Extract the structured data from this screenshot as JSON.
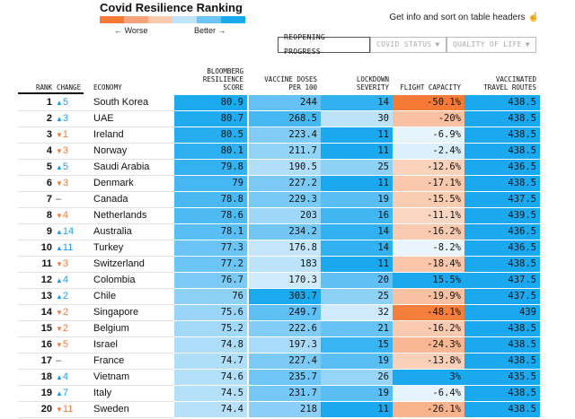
{
  "title": "Covid Resilience Ranking",
  "legend": {
    "worse_label": "← Worse",
    "better_label": "Better →",
    "colors": [
      "#f47a35",
      "#f6a27a",
      "#f9cbb1",
      "#bfe3fa",
      "#6cc4f5",
      "#1aa9ee"
    ]
  },
  "info_text": "Get info and sort on table headers",
  "tabs": [
    {
      "label": "REOPENING PROGRESS",
      "active": true
    },
    {
      "label": "COVID STATUS",
      "active": false
    },
    {
      "label": "QUALITY OF LIFE",
      "active": false
    }
  ],
  "headers": {
    "rank": "RANK",
    "change": "CHANGE",
    "economy": "ECONOMY",
    "score": [
      "BLOOMBERG",
      "RESILIENCE",
      "SCORE"
    ],
    "vaccine": [
      "VACCINE DOSES",
      "PER 100"
    ],
    "lockdown": [
      "LOCKDOWN",
      "SEVERITY"
    ],
    "flight": [
      "FLIGHT CAPACITY"
    ],
    "routes": [
      "VACCINATED",
      "TRAVEL ROUTES"
    ]
  },
  "rows": [
    {
      "rank": "1",
      "dir": "up",
      "change": "5",
      "economy": "South Korea",
      "score": "80.9",
      "vaccine": "244",
      "lockdown": "14",
      "flight": "-50.1%",
      "routes": "438.5"
    },
    {
      "rank": "2",
      "dir": "up",
      "change": "3",
      "economy": "UAE",
      "score": "80.7",
      "vaccine": "268.5",
      "lockdown": "30",
      "flight": "-20%",
      "routes": "438.5"
    },
    {
      "rank": "3",
      "dir": "down",
      "change": "1",
      "economy": "Ireland",
      "score": "80.5",
      "vaccine": "223.4",
      "lockdown": "11",
      "flight": "-6.9%",
      "routes": "438.5"
    },
    {
      "rank": "4",
      "dir": "down",
      "change": "3",
      "economy": "Norway",
      "score": "80.1",
      "vaccine": "211.7",
      "lockdown": "11",
      "flight": "-2.4%",
      "routes": "438.5"
    },
    {
      "rank": "5",
      "dir": "up",
      "change": "5",
      "economy": "Saudi Arabia",
      "score": "79.8",
      "vaccine": "190.5",
      "lockdown": "25",
      "flight": "-12.6%",
      "routes": "436.5"
    },
    {
      "rank": "6",
      "dir": "down",
      "change": "3",
      "economy": "Denmark",
      "score": "79",
      "vaccine": "227.2",
      "lockdown": "11",
      "flight": "-17.1%",
      "routes": "438.5"
    },
    {
      "rank": "7",
      "dir": "flat",
      "change": "–",
      "economy": "Canada",
      "score": "78.8",
      "vaccine": "229.3",
      "lockdown": "19",
      "flight": "-15.5%",
      "routes": "437.5"
    },
    {
      "rank": "8",
      "dir": "down",
      "change": "4",
      "economy": "Netherlands",
      "score": "78.6",
      "vaccine": "203",
      "lockdown": "16",
      "flight": "-11.1%",
      "routes": "439.5"
    },
    {
      "rank": "9",
      "dir": "up",
      "change": "14",
      "economy": "Australia",
      "score": "78.1",
      "vaccine": "234.2",
      "lockdown": "14",
      "flight": "-16.2%",
      "routes": "436.5"
    },
    {
      "rank": "10",
      "dir": "up",
      "change": "11",
      "economy": "Turkey",
      "score": "77.3",
      "vaccine": "176.8",
      "lockdown": "14",
      "flight": "-8.2%",
      "routes": "436.5"
    },
    {
      "rank": "11",
      "dir": "down",
      "change": "3",
      "economy": "Switzerland",
      "score": "77.2",
      "vaccine": "183",
      "lockdown": "11",
      "flight": "-18.4%",
      "routes": "438.5"
    },
    {
      "rank": "12",
      "dir": "up",
      "change": "4",
      "economy": "Colombia",
      "score": "76.7",
      "vaccine": "170.3",
      "lockdown": "20",
      "flight": "15.5%",
      "routes": "437.5"
    },
    {
      "rank": "13",
      "dir": "up",
      "change": "2",
      "economy": "Chile",
      "score": "76",
      "vaccine": "303.7",
      "lockdown": "25",
      "flight": "-19.9%",
      "routes": "437.5"
    },
    {
      "rank": "14",
      "dir": "down",
      "change": "2",
      "economy": "Singapore",
      "score": "75.6",
      "vaccine": "249.7",
      "lockdown": "32",
      "flight": "-48.1%",
      "routes": "439"
    },
    {
      "rank": "15",
      "dir": "down",
      "change": "2",
      "economy": "Belgium",
      "score": "75.2",
      "vaccine": "222.6",
      "lockdown": "21",
      "flight": "-16.2%",
      "routes": "438.5"
    },
    {
      "rank": "16",
      "dir": "down",
      "change": "5",
      "economy": "Israel",
      "score": "74.8",
      "vaccine": "197.3",
      "lockdown": "15",
      "flight": "-24.3%",
      "routes": "438.5"
    },
    {
      "rank": "17",
      "dir": "flat",
      "change": "–",
      "economy": "France",
      "score": "74.7",
      "vaccine": "227.4",
      "lockdown": "19",
      "flight": "-13.8%",
      "routes": "438.5"
    },
    {
      "rank": "18",
      "dir": "up",
      "change": "4",
      "economy": "Vietnam",
      "score": "74.6",
      "vaccine": "235.7",
      "lockdown": "26",
      "flight": "3%",
      "routes": "435.5"
    },
    {
      "rank": "19",
      "dir": "up",
      "change": "7",
      "economy": "Italy",
      "score": "74.5",
      "vaccine": "231.7",
      "lockdown": "19",
      "flight": "-6.4%",
      "routes": "438.5"
    },
    {
      "rank": "20",
      "dir": "down",
      "change": "11",
      "economy": "Sweden",
      "score": "74.4",
      "vaccine": "218",
      "lockdown": "11",
      "flight": "-26.1%",
      "routes": "438.5"
    }
  ]
}
